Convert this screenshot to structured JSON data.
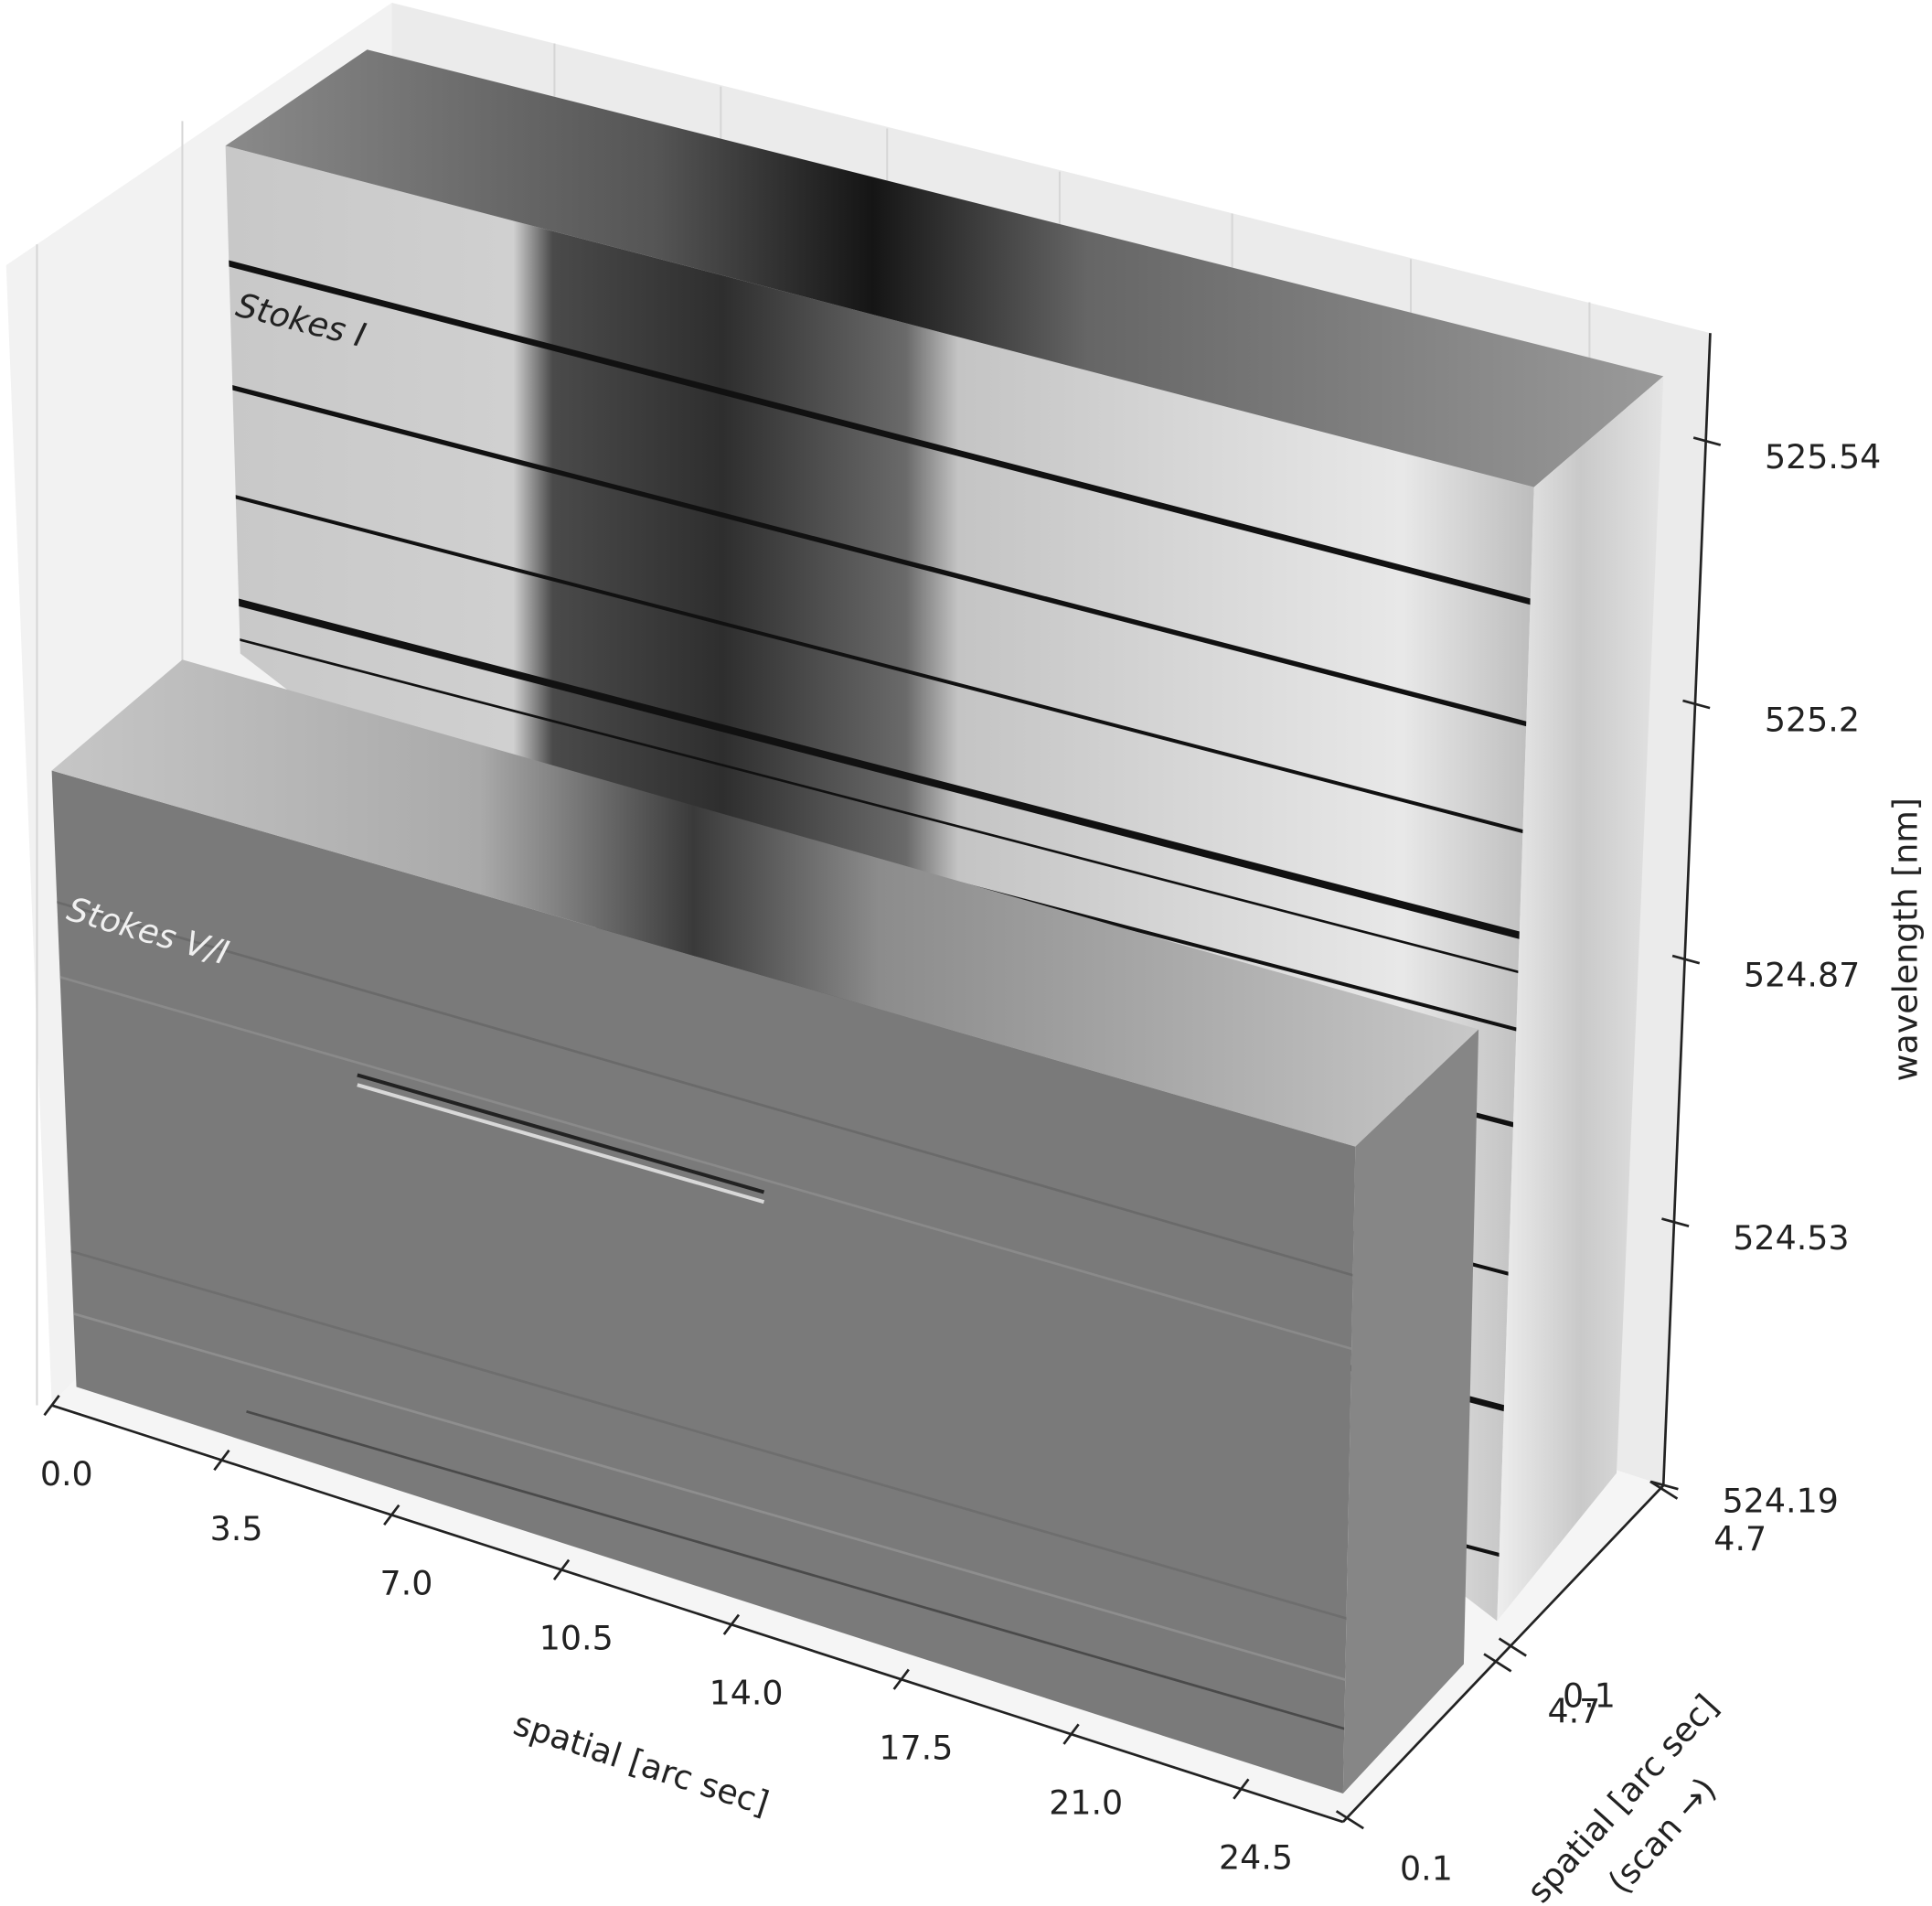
{
  "chart_data": {
    "type": "cube3d",
    "annotations": [
      "Stokes I",
      "Stokes V/I"
    ],
    "xlabel": "spatial [arc sec]",
    "zlabel": "wavelength [nm]",
    "ylabel": [
      "spatial [arc sec]",
      "(scan →)"
    ],
    "xlim": [
      0,
      26.6
    ],
    "xticks": [
      {
        "value": 0,
        "label": "0.0"
      },
      3.5,
      {
        "value": 7,
        "label": "7.0"
      },
      10.5,
      {
        "value": 14,
        "label": "14.0"
      },
      17.5,
      {
        "value": 21,
        "label": "21.0"
      },
      24.5
    ],
    "zlim": [
      524.19,
      525.68
    ],
    "zticks": [
      524.19,
      524.53,
      524.87,
      525.2,
      525.54
    ],
    "ylim": [
      0,
      4.8
    ],
    "yticks": [
      [
        0.1,
        4.7
      ],
      [
        0.1,
        4.7
      ]
    ]
  }
}
